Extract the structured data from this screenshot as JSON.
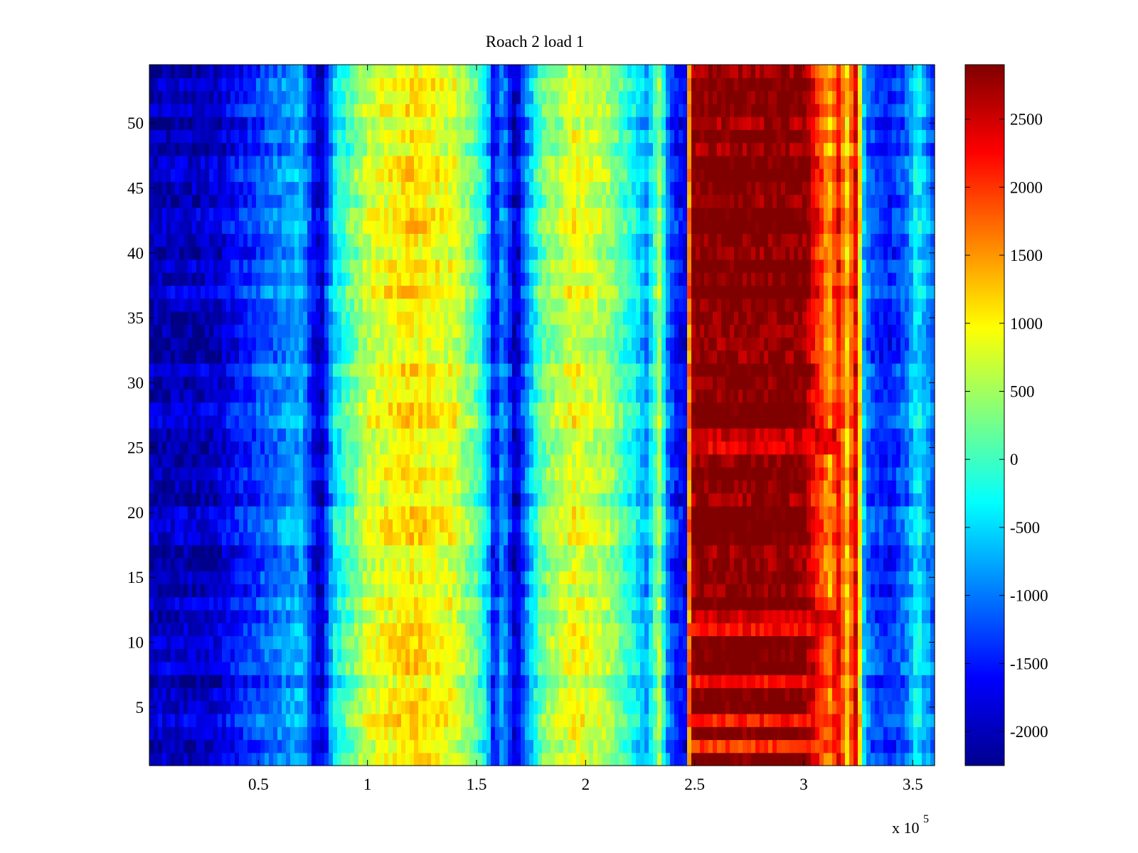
{
  "chart_data": {
    "type": "heatmap",
    "title": "Roach 2 load 1",
    "xlabel": "",
    "ylabel": "",
    "x_exponent_label": "x 10",
    "x_exponent_power": "5",
    "xlim": [
      0,
      360000
    ],
    "ylim": [
      0.5,
      54.5
    ],
    "x_ticks": [
      50000,
      100000,
      150000,
      200000,
      250000,
      300000,
      350000
    ],
    "x_tick_labels": [
      "0.5",
      "1",
      "1.5",
      "2",
      "2.5",
      "3",
      "3.5"
    ],
    "y_ticks": [
      5,
      10,
      15,
      20,
      25,
      30,
      35,
      40,
      45,
      50
    ],
    "y_tick_labels": [
      "5",
      "10",
      "15",
      "20",
      "25",
      "30",
      "35",
      "40",
      "45",
      "50"
    ],
    "rows": 54,
    "colormap": "jet",
    "clim": [
      -2250,
      2900
    ],
    "colorbar_ticks": [
      -2000,
      -1500,
      -1000,
      -500,
      0,
      500,
      1000,
      1500,
      2000,
      2500
    ],
    "colorbar_tick_labels": [
      "-2000",
      "-1500",
      "-1000",
      "-500",
      "0",
      "500",
      "1000",
      "1500",
      "2000",
      "2500"
    ],
    "profile": {
      "x": [
        0,
        30000,
        55000,
        70000,
        75000,
        79000,
        85000,
        100000,
        120000,
        140000,
        150000,
        155000,
        158000,
        162000,
        168000,
        172000,
        180000,
        195000,
        210000,
        222000,
        228000,
        234000,
        238000,
        242000,
        246000,
        248000,
        250000,
        300000,
        312000,
        316000,
        320000,
        324000,
        328000,
        332000,
        340000,
        348000,
        352000,
        360000
      ],
      "values": [
        -2000,
        -1900,
        -1100,
        -700,
        -1600,
        -1900,
        -400,
        700,
        1100,
        800,
        100,
        -500,
        -1700,
        -800,
        -2000,
        -1100,
        200,
        900,
        500,
        -300,
        -800,
        500,
        -1100,
        -1500,
        -1800,
        2700,
        2900,
        2900,
        1400,
        2200,
        1200,
        2400,
        -900,
        -1300,
        -1500,
        -1000,
        -300,
        -1200
      ]
    },
    "strong_rows_x": [
      {
        "row": 2,
        "x_range": [
          248000,
          315000
        ],
        "value": 2000
      },
      {
        "row": 4,
        "x_range": [
          248000,
          315000
        ],
        "value": 2150
      },
      {
        "row": 7,
        "x_range": [
          248000,
          315000
        ],
        "value": 2200
      },
      {
        "row": 11,
        "x_range": [
          248000,
          315000
        ],
        "value": 2250
      },
      {
        "row": 12,
        "x_range": [
          248000,
          315000
        ],
        "value": 2500
      },
      {
        "row": 25,
        "x_range": [
          248000,
          315000
        ],
        "value": 2350
      },
      {
        "row": 26,
        "x_range": [
          248000,
          315000
        ],
        "value": 2500
      }
    ]
  }
}
